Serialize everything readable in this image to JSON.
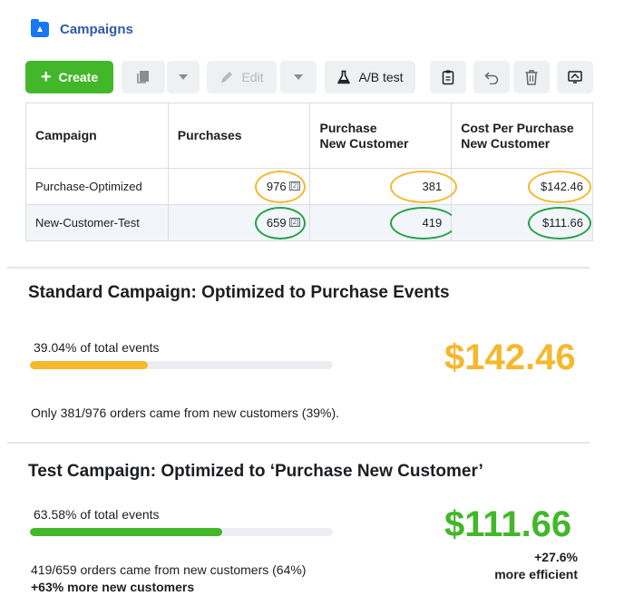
{
  "header": {
    "title": "Campaigns"
  },
  "toolbar": {
    "create_label": "Create",
    "edit_label": "Edit",
    "ab_test_label": "A/B test"
  },
  "table": {
    "headers": [
      "Campaign",
      "Purchases",
      "Purchase\nNew Customer",
      "Cost Per Purchase\nNew Customer"
    ],
    "header_purchases": "Purchases",
    "header_campaign": "Campaign",
    "header_pnc_line1": "Purchase",
    "header_pnc_line2": "New Customer",
    "header_cpp_line1": "Cost Per Purchase",
    "header_cpp_line2": "New Customer",
    "note_marker": "[2]",
    "rows": [
      {
        "campaign": "Purchase-Optimized",
        "purchases": "976",
        "purchase_new_customer": "381",
        "cost_per_purchase_new_customer": "$142.46"
      },
      {
        "campaign": "New-Customer-Test",
        "purchases": "659",
        "purchase_new_customer": "419",
        "cost_per_purchase_new_customer": "$111.66"
      }
    ]
  },
  "standard": {
    "title": "Standard Campaign: Optimized to Purchase Events",
    "bar_label": "39.04% of total events",
    "bar_fraction": 0.3904,
    "bar_color": "#f5b82e",
    "cost": "$142.46",
    "cost_color": "#f5b82e",
    "description": "Only 381/976 orders came from new customers (39%)."
  },
  "test": {
    "title": "Test Campaign: Optimized to ‘Purchase New Customer’",
    "bar_label": "63.58% of total events",
    "bar_fraction": 0.6358,
    "bar_color": "#42b72a",
    "cost": "$111.66",
    "cost_color": "#42b72a",
    "description": "419/659 orders came from new customers (64%)",
    "highlight": "+63% more new customers",
    "efficiency_value": "+27.6%",
    "efficiency_label": "more efficient"
  }
}
